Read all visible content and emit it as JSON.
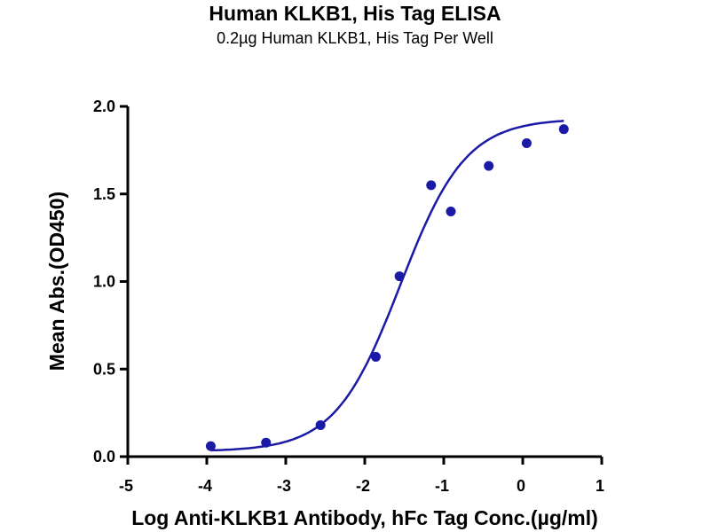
{
  "chart_data": {
    "type": "scatter",
    "title": "Human KLKB1, His Tag ELISA",
    "subtitle": "0.2µg Human KLKB1, His Tag Per Well",
    "xlabel": "Log Anti-KLKB1 Antibody, hFc Tag Conc.(µg/ml)",
    "ylabel": "Mean Abs.(OD450)",
    "xlim": [
      -5,
      1
    ],
    "ylim": [
      0,
      2.0
    ],
    "x_ticks": [
      "-5",
      "-4",
      "-3",
      "-2",
      "-1",
      "0",
      "1"
    ],
    "y_ticks": [
      "0.0",
      "0.5",
      "1.0",
      "1.5",
      "2.0"
    ],
    "grid": false,
    "legend": "none",
    "series": [
      {
        "x": [
          -3.95,
          -3.25,
          -2.56,
          -1.86,
          -1.56,
          -1.16,
          -0.91,
          -0.43,
          0.05,
          0.52
        ],
        "y": [
          0.06,
          0.08,
          0.18,
          0.57,
          1.03,
          1.55,
          1.4,
          1.66,
          1.79,
          1.87
        ],
        "fit": "4PL sigmoid"
      }
    ],
    "colors": {
      "series": "#1a1aa6",
      "axes": "#000000"
    }
  }
}
